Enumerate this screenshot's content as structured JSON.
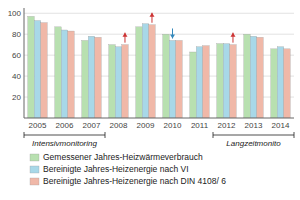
{
  "chart_data": {
    "type": "bar",
    "categories": [
      "2005",
      "2006",
      "2007",
      "2008",
      "2009",
      "2010",
      "2011",
      "2012",
      "2013",
      "2014"
    ],
    "series": [
      {
        "name": "Gemessener Jahres-Heizwärmeverbrauch",
        "color": "#b8e0b0",
        "values": [
          97,
          87,
          74,
          70,
          87,
          80,
          63,
          71,
          80,
          66
        ]
      },
      {
        "name": "Bereinigte Jahres-Heizenergie nach VI",
        "color": "#a8d8e8",
        "values": [
          93,
          84,
          78,
          68,
          90,
          74,
          68,
          71,
          78,
          68
        ]
      },
      {
        "name": "Bereinigte Jahres-Heizenergie nach DIN 4108/ 6",
        "color": "#f0b8a8",
        "values": [
          91,
          83,
          77,
          70,
          89,
          74,
          69,
          70,
          77,
          66
        ]
      }
    ],
    "ylim": [
      0,
      105
    ],
    "yticks": [
      20,
      40,
      60,
      80,
      100
    ],
    "grid": true,
    "legend": "bottom",
    "annotations": [
      {
        "text": "Intensivmonitoring",
        "from": "2005",
        "to": "2007"
      },
      {
        "text": "Langzeitmonito",
        "from": "2012",
        "to": "2014"
      },
      {
        "arrow": "up",
        "series": "Bereinigte Jahres-Heizenergie nach DIN 4108/ 6",
        "category": "2008"
      },
      {
        "arrow": "up",
        "series": "Bereinigte Jahres-Heizenergie nach DIN 4108/ 6",
        "category": "2009"
      },
      {
        "arrow": "up",
        "series": "Bereinigte Jahres-Heizenergie nach DIN 4108/ 6",
        "category": "2012"
      },
      {
        "arrow": "down",
        "series": "Bereinigte Jahres-Heizenergie nach VI",
        "category": "2010"
      }
    ]
  }
}
